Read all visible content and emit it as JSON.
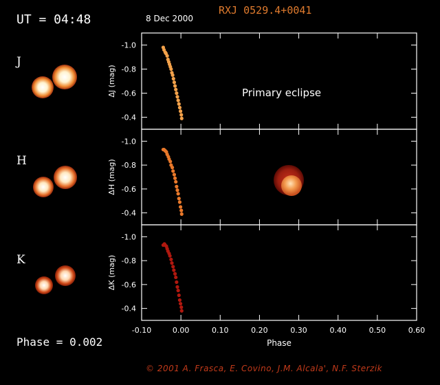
{
  "header": {
    "ut_label": "UT = 04:48",
    "date": "8 Dec 2000",
    "object": "RXJ 0529.4+0041"
  },
  "bands": [
    {
      "label": "J",
      "color": "#f2a14a"
    },
    {
      "label": "H",
      "color": "#e8782a"
    },
    {
      "label": "K",
      "color": "#b0180f"
    }
  ],
  "phase_readout": "Phase = 0.002",
  "annotation": "Primary eclipse",
  "credit": "© 2001 A. Frasca, E. Covino, J.M. Alcala', N.F. Sterzik",
  "chart_data": [
    {
      "type": "scatter",
      "ylabel": "ΔJ (mag)",
      "ylim": [
        -0.3,
        -1.1
      ],
      "xlim": [
        -0.1,
        0.6
      ],
      "yticks": [
        "-1.0",
        "-0.8",
        "-0.6",
        "-0.4"
      ],
      "color": "#f2a14a",
      "x": [
        -0.045,
        -0.043,
        -0.04,
        -0.038,
        -0.035,
        -0.033,
        -0.031,
        -0.029,
        -0.027,
        -0.025,
        -0.023,
        -0.021,
        -0.019,
        -0.017,
        -0.015,
        -0.013,
        -0.011,
        -0.009,
        -0.007,
        -0.005,
        -0.003,
        -0.001,
        0.001,
        0.002
      ],
      "y": [
        -0.98,
        -0.96,
        -0.94,
        -0.93,
        -0.91,
        -0.88,
        -0.86,
        -0.84,
        -0.82,
        -0.8,
        -0.77,
        -0.75,
        -0.72,
        -0.69,
        -0.66,
        -0.63,
        -0.6,
        -0.57,
        -0.54,
        -0.51,
        -0.48,
        -0.45,
        -0.42,
        -0.39
      ]
    },
    {
      "type": "scatter",
      "ylabel": "ΔH (mag)",
      "ylim": [
        -0.3,
        -1.1
      ],
      "xlim": [
        -0.1,
        0.6
      ],
      "yticks": [
        "-1.0",
        "-0.8",
        "-0.6",
        "-0.4"
      ],
      "color": "#e8782a",
      "x": [
        -0.045,
        -0.043,
        -0.04,
        -0.037,
        -0.035,
        -0.032,
        -0.03,
        -0.027,
        -0.025,
        -0.022,
        -0.02,
        -0.017,
        -0.015,
        -0.013,
        -0.011,
        -0.009,
        -0.007,
        -0.005,
        -0.003,
        -0.001,
        0.001,
        0.002
      ],
      "y": [
        -0.93,
        -0.93,
        -0.92,
        -0.91,
        -0.89,
        -0.87,
        -0.85,
        -0.83,
        -0.8,
        -0.78,
        -0.75,
        -0.72,
        -0.69,
        -0.66,
        -0.62,
        -0.59,
        -0.56,
        -0.52,
        -0.49,
        -0.45,
        -0.42,
        -0.39
      ]
    },
    {
      "type": "scatter",
      "ylabel": "ΔK (mag)",
      "ylim": [
        -0.3,
        -1.1
      ],
      "xlim": [
        -0.1,
        0.6
      ],
      "yticks": [
        "-1.0",
        "-0.8",
        "-0.6",
        "-0.4"
      ],
      "xlabel": "Phase",
      "xticks": [
        "-0.10",
        "0.00",
        "0.10",
        "0.20",
        "0.30",
        "0.40",
        "0.50",
        "0.60"
      ],
      "color": "#b0180f",
      "x": [
        -0.045,
        -0.042,
        -0.04,
        -0.037,
        -0.035,
        -0.033,
        -0.03,
        -0.028,
        -0.025,
        -0.023,
        -0.02,
        -0.018,
        -0.015,
        -0.013,
        -0.011,
        -0.009,
        -0.007,
        -0.005,
        -0.003,
        -0.001,
        0.001,
        0.002
      ],
      "y": [
        -0.93,
        -0.94,
        -0.93,
        -0.92,
        -0.9,
        -0.88,
        -0.86,
        -0.84,
        -0.81,
        -0.78,
        -0.75,
        -0.72,
        -0.69,
        -0.66,
        -0.62,
        -0.58,
        -0.55,
        -0.51,
        -0.47,
        -0.44,
        -0.41,
        -0.38
      ]
    }
  ]
}
